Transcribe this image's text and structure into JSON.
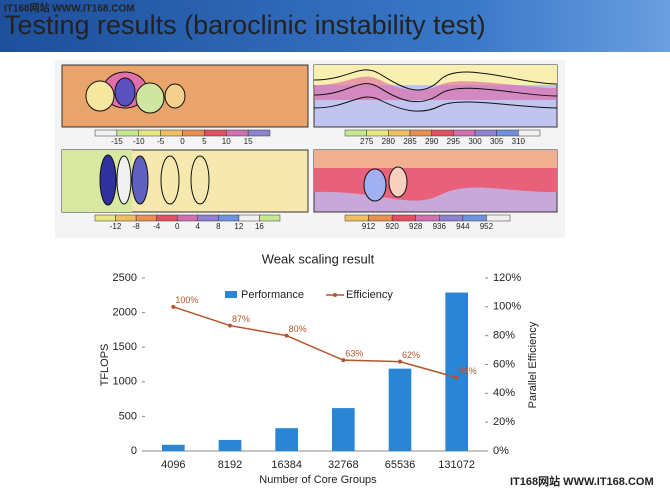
{
  "slide": {
    "title": "Testing results (baroclinic instability test)",
    "watermark_top": "IT168网站 WWW.IT168.COM",
    "watermark_bottom": "IT168网站 WWW.IT168.COM"
  },
  "panels": [
    {
      "colorbar_labels": [
        "-15",
        "-10",
        "-5",
        "0",
        "5",
        "10",
        "15"
      ]
    },
    {
      "colorbar_labels": [
        "275",
        "280",
        "285",
        "290",
        "295",
        "300",
        "305",
        "310"
      ]
    },
    {
      "colorbar_labels": [
        "-12",
        "-8",
        "-4",
        "0",
        "4",
        "8",
        "12",
        "16"
      ]
    },
    {
      "colorbar_labels": [
        "912",
        "920",
        "928",
        "936",
        "944",
        "952"
      ]
    }
  ],
  "chart_data": {
    "type": "bar",
    "title": "Weak scaling result",
    "x_label": "Number of Core Groups",
    "y_label": "TFLOPS",
    "y2_label": "Parallel Efficiency",
    "categories": [
      "4096",
      "8192",
      "16384",
      "32768",
      "65536",
      "131072"
    ],
    "series": [
      {
        "name": "Performance",
        "color": "#2a86d4",
        "type": "bar",
        "values": [
          90,
          160,
          330,
          620,
          1190,
          2290
        ]
      },
      {
        "name": "Efficiency",
        "color": "#b5532a",
        "type": "line",
        "axis": "y2",
        "values": [
          100,
          87,
          80,
          63,
          62,
          51
        ],
        "value_labels": [
          "100%",
          "87%",
          "80%",
          "63%",
          "62%",
          "51%"
        ]
      }
    ],
    "ylim": [
      0,
      2500
    ],
    "yticks": [
      0,
      500,
      1000,
      1500,
      2000,
      2500
    ],
    "y2lim": [
      0,
      120
    ],
    "y2ticks": [
      {
        "value": 0,
        "label": "0%"
      },
      {
        "value": 20,
        "label": "20%"
      },
      {
        "value": 40,
        "label": "40%"
      },
      {
        "value": 60,
        "label": "60%"
      },
      {
        "value": 80,
        "label": "80%"
      },
      {
        "value": 100,
        "label": "100%"
      },
      {
        "value": 120,
        "label": "120%"
      }
    ],
    "legend": "top"
  }
}
